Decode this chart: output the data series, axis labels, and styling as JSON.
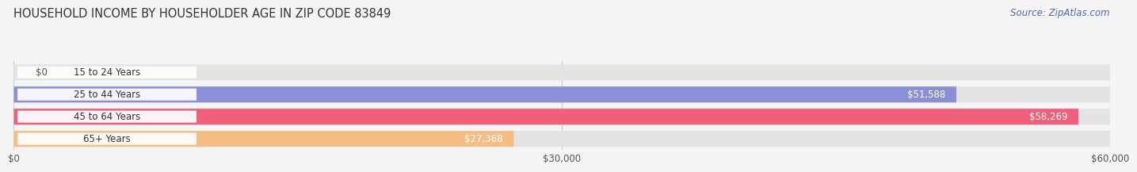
{
  "title": "HOUSEHOLD INCOME BY HOUSEHOLDER AGE IN ZIP CODE 83849",
  "source": "Source: ZipAtlas.com",
  "categories": [
    "15 to 24 Years",
    "25 to 44 Years",
    "45 to 64 Years",
    "65+ Years"
  ],
  "values": [
    0,
    51588,
    58269,
    27368
  ],
  "bar_colors": [
    "#5ECFCA",
    "#8B8FD8",
    "#F0607A",
    "#F5BE85"
  ],
  "label_colors": [
    "#444444",
    "#ffffff",
    "#ffffff",
    "#444444"
  ],
  "xlim": [
    0,
    60000
  ],
  "xticks": [
    0,
    30000,
    60000
  ],
  "xtick_labels": [
    "$0",
    "$30,000",
    "$60,000"
  ],
  "value_labels": [
    "$0",
    "$51,588",
    "$58,269",
    "$27,368"
  ],
  "bg_color": "#f5f5f5",
  "bar_bg_color": "#e4e4e4",
  "title_fontsize": 10.5,
  "source_fontsize": 8.5,
  "label_fontsize": 8.5,
  "value_fontsize": 8.5,
  "tick_fontsize": 8.5
}
